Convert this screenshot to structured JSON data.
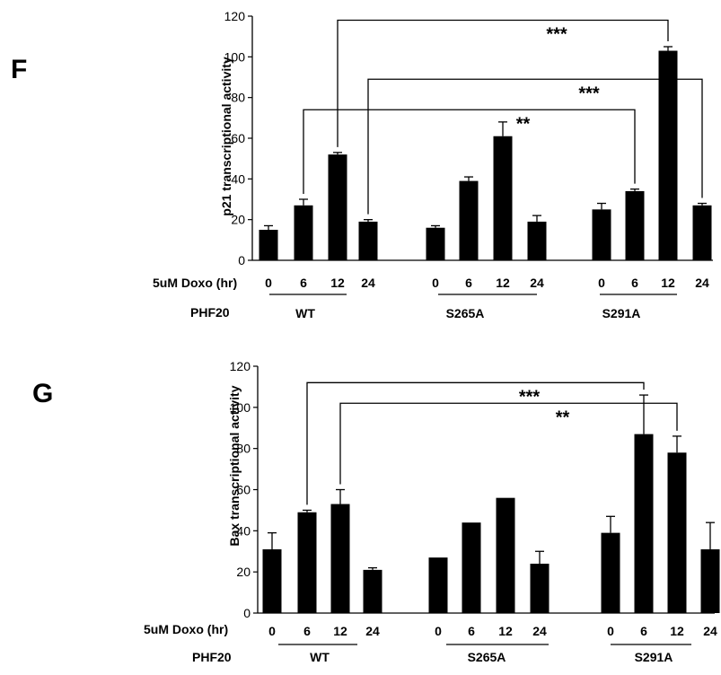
{
  "chart_data": [
    {
      "panel_letter": "F",
      "type": "bar",
      "ylabel": "p21 transcriptional activity",
      "ylim": [
        0,
        120
      ],
      "yticks": [
        0,
        20,
        40,
        60,
        80,
        100,
        120
      ],
      "xrow_label": "5uM Doxo (hr)",
      "group_row_label": "PHF20",
      "groups": [
        {
          "label": "WT",
          "x": [
            "0",
            "6",
            "12",
            "24"
          ],
          "values": [
            15,
            27,
            52,
            19
          ],
          "errors": [
            2,
            3,
            1,
            1
          ]
        },
        {
          "label": "S265A",
          "x": [
            "0",
            "6",
            "12",
            "24"
          ],
          "values": [
            16,
            39,
            61,
            19
          ],
          "errors": [
            1,
            2,
            7,
            3
          ]
        },
        {
          "label": "S291A",
          "x": [
            "0",
            "6",
            "12",
            "24"
          ],
          "values": [
            25,
            34,
            103,
            27
          ],
          "errors": [
            3,
            1,
            2,
            1
          ]
        }
      ],
      "annotations": [
        {
          "from_group": 0,
          "from_bar": 2,
          "to_group": 2,
          "to_bar": 2,
          "label": "***",
          "level": 118
        },
        {
          "from_group": 0,
          "from_bar": 3,
          "to_group": 2,
          "to_bar": 3,
          "label": "***",
          "level": 89
        },
        {
          "from_group": 0,
          "from_bar": 1,
          "to_group": 2,
          "to_bar": 1,
          "label": "**",
          "level": 74
        }
      ]
    },
    {
      "panel_letter": "G",
      "type": "bar",
      "ylabel": "Bax transcriptional activity",
      "ylim": [
        0,
        120
      ],
      "yticks": [
        0,
        20,
        40,
        60,
        80,
        100,
        120
      ],
      "xrow_label": "5uM Doxo (hr)",
      "group_row_label": "PHF20",
      "groups": [
        {
          "label": "WT",
          "x": [
            "0",
            "6",
            "12",
            "24"
          ],
          "values": [
            31,
            49,
            53,
            21
          ],
          "errors": [
            8,
            1,
            7,
            1
          ]
        },
        {
          "label": "S265A",
          "x": [
            "0",
            "6",
            "12",
            "24"
          ],
          "values": [
            27,
            44,
            56,
            24
          ],
          "errors": [
            0,
            0,
            0,
            6
          ]
        },
        {
          "label": "S291A",
          "x": [
            "0",
            "6",
            "12",
            "24"
          ],
          "values": [
            39,
            87,
            78,
            31
          ],
          "errors": [
            8,
            19,
            8,
            13
          ]
        }
      ],
      "annotations": [
        {
          "from_group": 0,
          "from_bar": 1,
          "to_group": 2,
          "to_bar": 1,
          "label": "***",
          "level": 112
        },
        {
          "from_group": 0,
          "from_bar": 2,
          "to_group": 2,
          "to_bar": 2,
          "label": "**",
          "level": 102
        }
      ]
    }
  ]
}
